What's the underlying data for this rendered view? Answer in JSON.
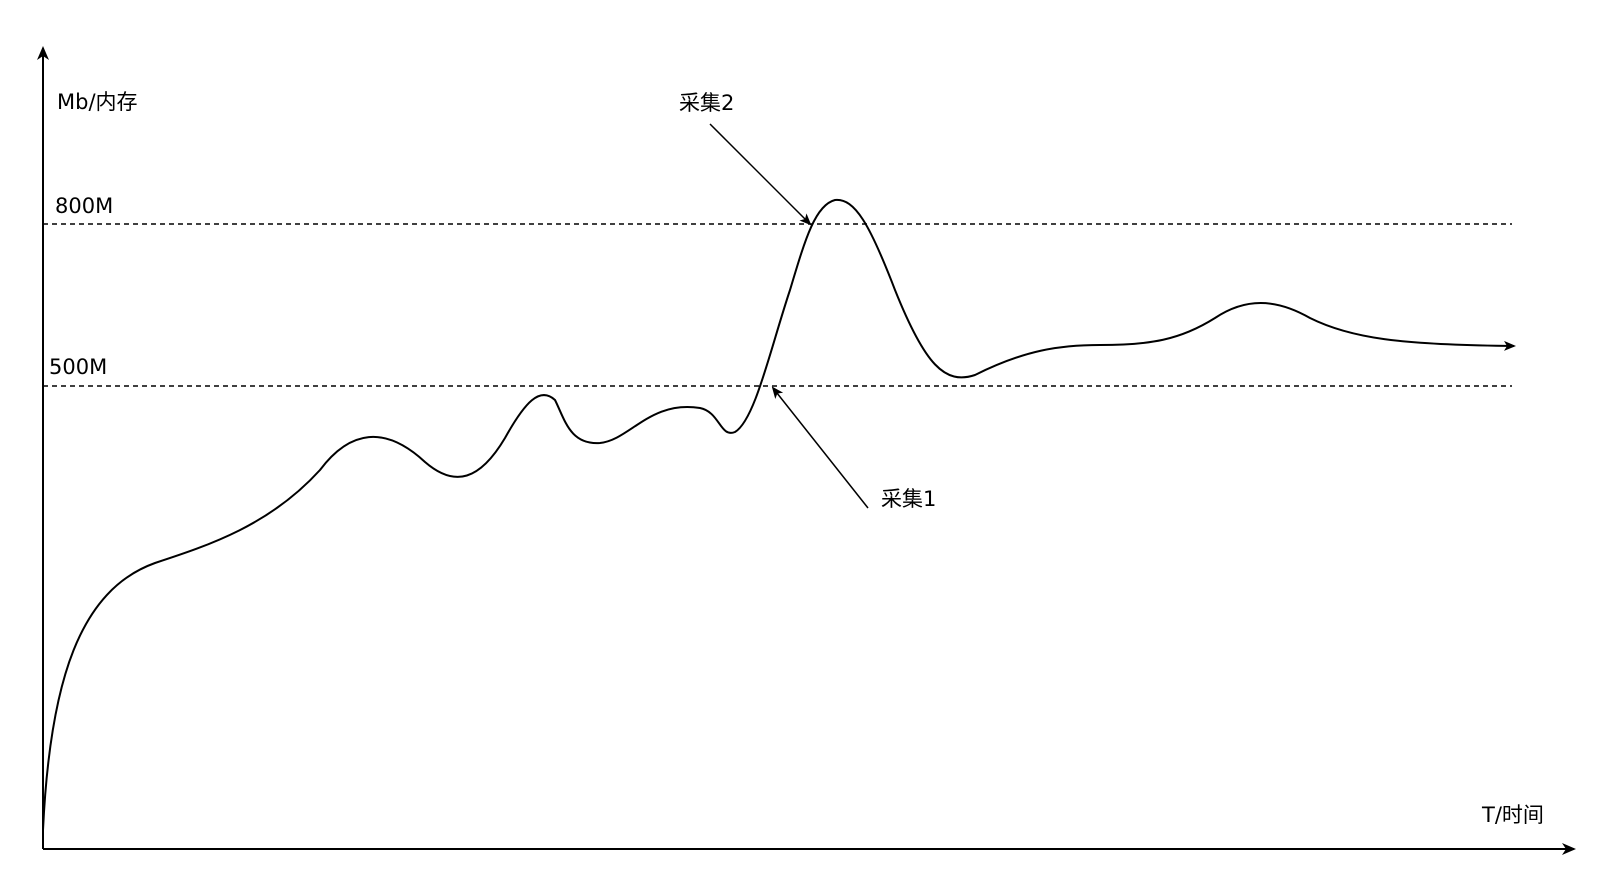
{
  "axes": {
    "y_label": "Mb/内存",
    "x_label": "T/时间"
  },
  "thresholds": [
    {
      "label": "800M"
    },
    {
      "label": "500M"
    }
  ],
  "annotations": [
    {
      "label": "采集2"
    },
    {
      "label": "采集1"
    }
  ],
  "colors": {
    "line": "#000000",
    "background": "#ffffff"
  }
}
